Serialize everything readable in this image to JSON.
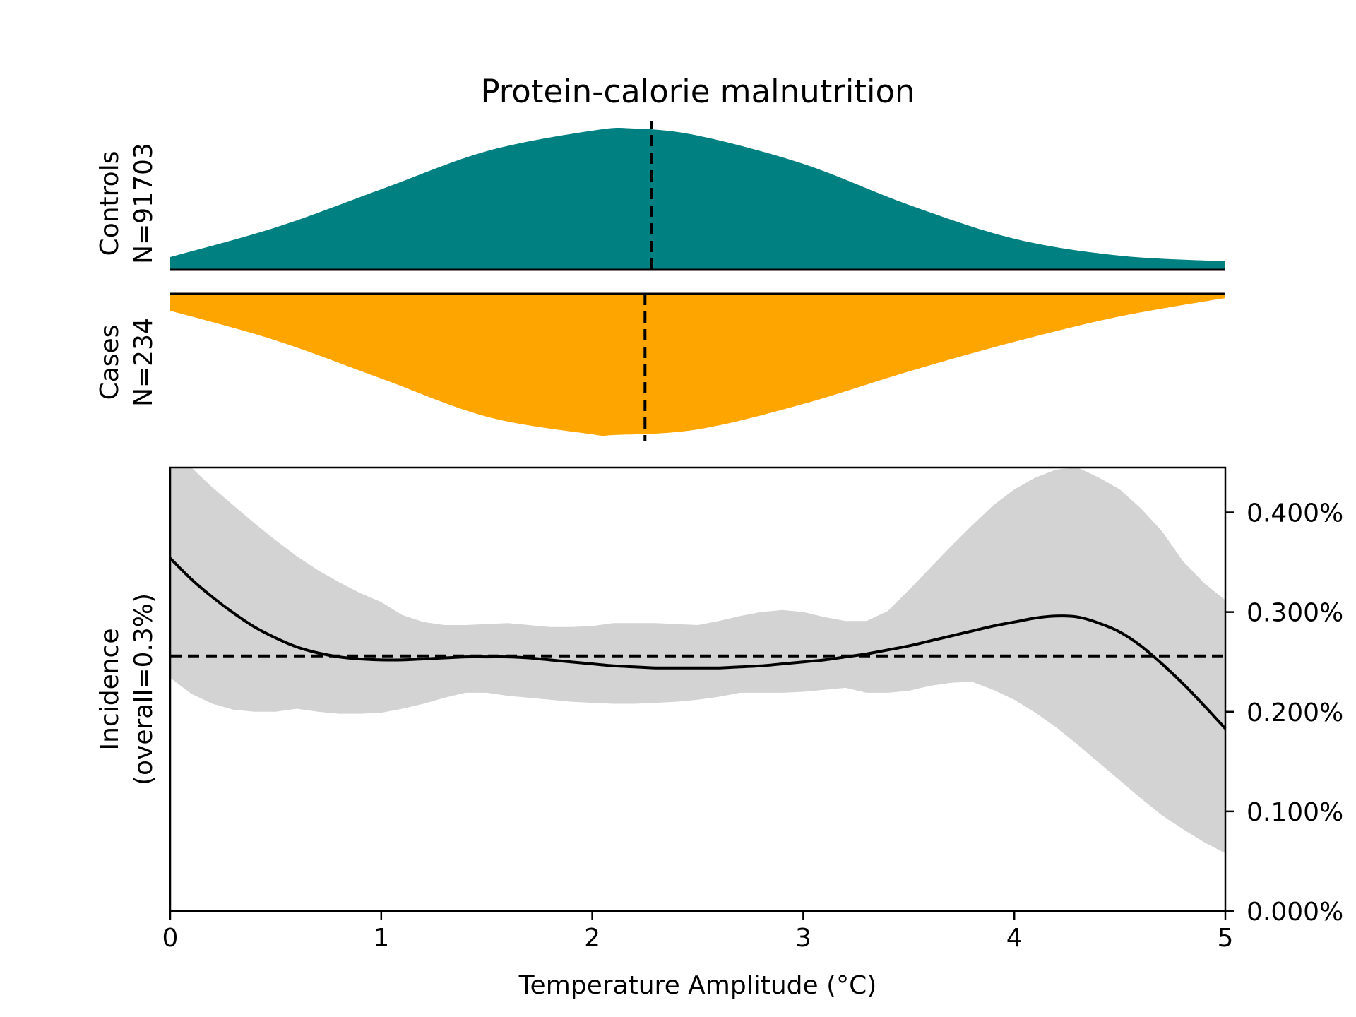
{
  "chart_data": [
    {
      "type": "area",
      "panel": "density",
      "title": "Protein-calorie malnutrition",
      "xlim": [
        0,
        5
      ],
      "groups": [
        {
          "name": "Controls",
          "n_label": "N=91703",
          "color": "#008080",
          "direction": "up",
          "marker_x": 2.28,
          "x": [
            0,
            0.5,
            1,
            1.5,
            2,
            2.2,
            2.5,
            3,
            3.5,
            4,
            4.5,
            5
          ],
          "density": [
            0.09,
            0.3,
            0.57,
            0.84,
            0.985,
            1.0,
            0.95,
            0.75,
            0.46,
            0.22,
            0.1,
            0.06
          ]
        },
        {
          "name": "Cases",
          "n_label": "N=234",
          "color": "#FFA500",
          "direction": "down",
          "marker_x": 2.25,
          "x": [
            0,
            0.5,
            1,
            1.5,
            2,
            2.1,
            2.5,
            3,
            3.5,
            4,
            4.5,
            5
          ],
          "density": [
            0.12,
            0.33,
            0.6,
            0.87,
            0.995,
            1.0,
            0.96,
            0.78,
            0.55,
            0.34,
            0.16,
            0.03
          ]
        }
      ]
    },
    {
      "type": "line",
      "panel": "incidence",
      "xlabel": "Temperature Amplitude (°C)",
      "ylabel_line1": "Incidence",
      "ylabel_line2": "(overall=0.3%)",
      "xlim": [
        0,
        5
      ],
      "ylim": [
        0,
        0.00445
      ],
      "x_ticks": [
        0,
        1,
        2,
        3,
        4,
        5
      ],
      "y_ticks": [
        0,
        0.001,
        0.002,
        0.003,
        0.004
      ],
      "y_tick_labels": [
        "0.000%",
        "0.100%",
        "0.200%",
        "0.300%",
        "0.400%"
      ],
      "overall_line": 0.00256,
      "band_color": "#d3d3d3",
      "x": [
        0,
        0.1,
        0.2,
        0.3,
        0.4,
        0.5,
        0.6,
        0.7,
        0.8,
        0.9,
        1.0,
        1.1,
        1.2,
        1.3,
        1.4,
        1.5,
        1.6,
        1.7,
        1.8,
        1.9,
        2.0,
        2.1,
        2.2,
        2.3,
        2.4,
        2.5,
        2.6,
        2.7,
        2.8,
        2.9,
        3.0,
        3.1,
        3.2,
        3.3,
        3.4,
        3.5,
        3.6,
        3.7,
        3.8,
        3.9,
        4.0,
        4.1,
        4.2,
        4.3,
        4.4,
        4.5,
        4.6,
        4.7,
        4.8,
        4.9,
        5.0
      ],
      "estimate": [
        0.00354,
        0.00333,
        0.00315,
        0.00299,
        0.00285,
        0.00274,
        0.00265,
        0.00259,
        0.00255,
        0.00253,
        0.00252,
        0.00252,
        0.00253,
        0.00254,
        0.00255,
        0.00255,
        0.00255,
        0.00254,
        0.00252,
        0.0025,
        0.00248,
        0.00246,
        0.00245,
        0.00244,
        0.00244,
        0.00244,
        0.00244,
        0.00245,
        0.00246,
        0.00248,
        0.0025,
        0.00252,
        0.00255,
        0.00258,
        0.00262,
        0.00266,
        0.00271,
        0.00276,
        0.00281,
        0.00286,
        0.0029,
        0.00294,
        0.00296,
        0.00295,
        0.00289,
        0.0028,
        0.00266,
        0.00248,
        0.00228,
        0.00206,
        0.00183
      ],
      "lower": [
        0.00234,
        0.00218,
        0.00208,
        0.00202,
        0.002,
        0.002,
        0.00203,
        0.002,
        0.00198,
        0.00198,
        0.00199,
        0.00203,
        0.00208,
        0.00214,
        0.00219,
        0.00219,
        0.00216,
        0.00214,
        0.00212,
        0.0021,
        0.00209,
        0.00208,
        0.00208,
        0.00209,
        0.0021,
        0.00212,
        0.00215,
        0.00219,
        0.00219,
        0.00219,
        0.0022,
        0.00222,
        0.00224,
        0.00219,
        0.00219,
        0.00221,
        0.00226,
        0.00229,
        0.0023,
        0.00222,
        0.00212,
        0.00199,
        0.00184,
        0.00167,
        0.00149,
        0.00131,
        0.00113,
        0.00096,
        0.00082,
        0.00069,
        0.00058
      ],
      "upper": [
        0.00445,
        0.00445,
        0.00425,
        0.00407,
        0.00389,
        0.00372,
        0.00356,
        0.00342,
        0.0033,
        0.00319,
        0.0031,
        0.00297,
        0.0029,
        0.00287,
        0.00287,
        0.00288,
        0.00289,
        0.00287,
        0.00285,
        0.00285,
        0.00286,
        0.00289,
        0.00289,
        0.00289,
        0.00288,
        0.00287,
        0.00291,
        0.00296,
        0.003,
        0.00302,
        0.003,
        0.00295,
        0.00291,
        0.00291,
        0.00301,
        0.00322,
        0.00344,
        0.00366,
        0.00387,
        0.00407,
        0.00423,
        0.00435,
        0.00443,
        0.00445,
        0.00435,
        0.00423,
        0.00404,
        0.00381,
        0.00351,
        0.00329,
        0.00312
      ]
    }
  ]
}
